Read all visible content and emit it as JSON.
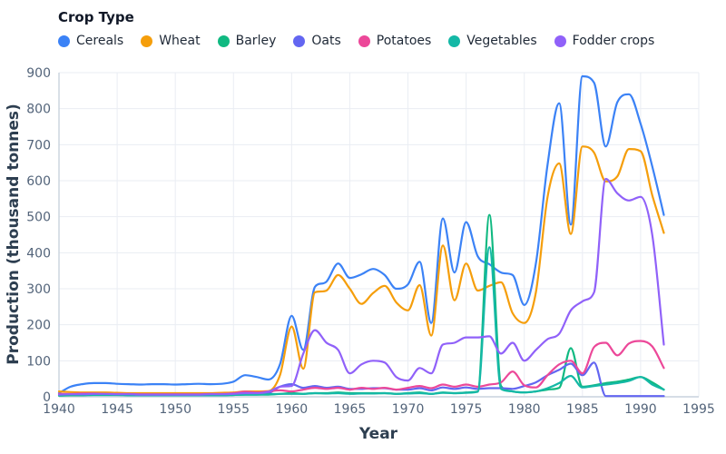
{
  "legend": {
    "title": "Crop Type"
  },
  "chart_data": {
    "type": "line",
    "title": "",
    "xlabel": "Year",
    "ylabel": "Production (thousand tonnes)",
    "xlim": [
      1940,
      1995
    ],
    "ylim": [
      0,
      900
    ],
    "x_ticks": [
      1940,
      1945,
      1950,
      1955,
      1960,
      1965,
      1970,
      1975,
      1980,
      1985,
      1990,
      1995
    ],
    "y_ticks": [
      0,
      100,
      200,
      300,
      400,
      500,
      600,
      700,
      800,
      900
    ],
    "grid": true,
    "legend_position": "top-left",
    "x": [
      1940,
      1941,
      1942,
      1943,
      1944,
      1945,
      1946,
      1947,
      1948,
      1949,
      1950,
      1951,
      1952,
      1953,
      1954,
      1955,
      1956,
      1957,
      1958,
      1959,
      1960,
      1961,
      1962,
      1963,
      1964,
      1965,
      1966,
      1967,
      1968,
      1969,
      1970,
      1971,
      1972,
      1973,
      1974,
      1975,
      1976,
      1977,
      1978,
      1979,
      1980,
      1981,
      1982,
      1983,
      1984,
      1985,
      1986,
      1987,
      1988,
      1989,
      1990,
      1991,
      1992
    ],
    "series": [
      {
        "name": "Cereals",
        "color": "#3b82f6",
        "values": [
          10,
          28,
          35,
          38,
          38,
          36,
          35,
          34,
          35,
          35,
          34,
          35,
          36,
          35,
          36,
          42,
          60,
          55,
          48,
          90,
          225,
          130,
          305,
          320,
          370,
          330,
          340,
          355,
          338,
          300,
          312,
          375,
          205,
          495,
          345,
          485,
          390,
          368,
          345,
          338,
          255,
          370,
          645,
          815,
          478,
          890,
          872,
          695,
          818,
          840,
          758,
          640,
          505
        ]
      },
      {
        "name": "Wheat",
        "color": "#f59e0b",
        "values": [
          15,
          13,
          12,
          12,
          12,
          11,
          10,
          10,
          10,
          10,
          10,
          10,
          10,
          10,
          11,
          12,
          15,
          15,
          16,
          60,
          195,
          78,
          290,
          295,
          338,
          300,
          258,
          288,
          308,
          262,
          240,
          310,
          170,
          420,
          268,
          370,
          295,
          308,
          318,
          232,
          205,
          290,
          555,
          648,
          452,
          695,
          678,
          598,
          612,
          688,
          682,
          560,
          455
        ]
      },
      {
        "name": "Barley",
        "color": "#10b981",
        "values": [
          3,
          4,
          4,
          5,
          5,
          5,
          5,
          4,
          4,
          4,
          4,
          4,
          4,
          4,
          4,
          5,
          6,
          6,
          6,
          8,
          10,
          8,
          10,
          10,
          12,
          10,
          10,
          10,
          10,
          8,
          10,
          12,
          8,
          12,
          10,
          12,
          15,
          505,
          30,
          15,
          12,
          15,
          20,
          25,
          135,
          28,
          32,
          38,
          42,
          48,
          55,
          40,
          20
        ]
      },
      {
        "name": "Oats",
        "color": "#6366f1",
        "values": [
          5,
          6,
          6,
          6,
          6,
          6,
          5,
          5,
          5,
          5,
          5,
          5,
          5,
          5,
          5,
          6,
          8,
          8,
          10,
          28,
          35,
          25,
          30,
          25,
          28,
          22,
          22,
          24,
          24,
          20,
          20,
          24,
          18,
          26,
          22,
          26,
          22,
          24,
          24,
          22,
          30,
          40,
          60,
          75,
          92,
          60,
          95,
          2,
          2,
          2,
          2,
          2,
          2
        ]
      },
      {
        "name": "Potatoes",
        "color": "#ec4899",
        "values": [
          8,
          8,
          9,
          9,
          8,
          8,
          8,
          7,
          7,
          7,
          7,
          7,
          7,
          8,
          8,
          10,
          14,
          12,
          15,
          18,
          15,
          20,
          25,
          22,
          25,
          20,
          25,
          22,
          25,
          20,
          25,
          30,
          24,
          34,
          28,
          34,
          28,
          34,
          40,
          70,
          32,
          26,
          60,
          90,
          100,
          65,
          138,
          150,
          115,
          148,
          155,
          140,
          80
        ]
      },
      {
        "name": "Vegetables",
        "color": "#14b8a6",
        "values": [
          4,
          5,
          5,
          5,
          5,
          5,
          4,
          4,
          4,
          4,
          4,
          4,
          4,
          4,
          4,
          5,
          6,
          6,
          7,
          8,
          8,
          8,
          10,
          9,
          10,
          8,
          9,
          9,
          10,
          8,
          9,
          10,
          8,
          11,
          10,
          11,
          14,
          415,
          22,
          15,
          12,
          15,
          24,
          38,
          58,
          26,
          30,
          34,
          38,
          44,
          55,
          34,
          20
        ]
      },
      {
        "name": "Fodder crops",
        "color": "#9061f9",
        "values": [
          6,
          7,
          7,
          8,
          8,
          7,
          7,
          6,
          6,
          6,
          6,
          6,
          6,
          7,
          7,
          8,
          10,
          10,
          14,
          28,
          30,
          120,
          185,
          150,
          130,
          65,
          90,
          100,
          95,
          55,
          45,
          80,
          65,
          145,
          150,
          165,
          165,
          168,
          120,
          150,
          100,
          130,
          160,
          175,
          240,
          265,
          290,
          605,
          565,
          545,
          555,
          450,
          145
        ]
      }
    ]
  }
}
